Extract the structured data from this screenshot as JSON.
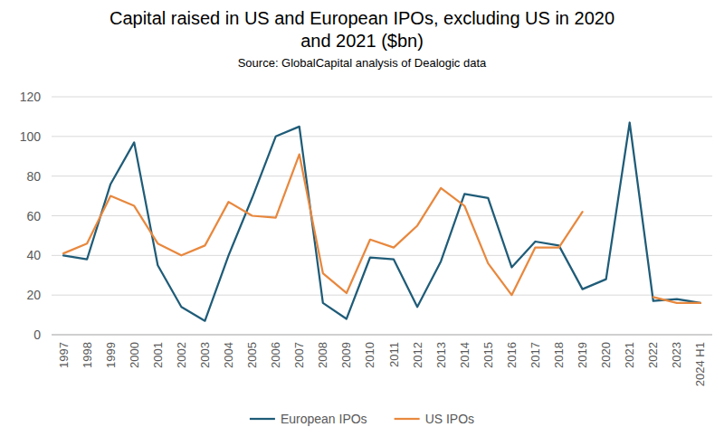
{
  "chart_data": {
    "type": "line",
    "title": "Capital raised in US and European IPOs, excluding US in 2020 and 2021 ($bn)",
    "subtitle": "Source: GlobalCapital analysis of Dealogic data",
    "categories": [
      "1997",
      "1998",
      "1999",
      "2000",
      "2001",
      "2002",
      "2003",
      "2004",
      "2005",
      "2006",
      "2007",
      "2008",
      "2009",
      "2010",
      "2011",
      "2012",
      "2013",
      "2014",
      "2015",
      "2016",
      "2017",
      "2018",
      "2019",
      "2020",
      "2021",
      "2022",
      "2023",
      "2024 H1"
    ],
    "series": [
      {
        "name": "European IPOs",
        "color": "#1f5c78",
        "values": [
          40,
          38,
          76,
          97,
          35,
          14,
          7,
          40,
          69,
          100,
          105,
          16,
          8,
          39,
          38,
          14,
          37,
          71,
          69,
          34,
          47,
          45,
          23,
          28,
          107,
          17,
          18,
          16
        ]
      },
      {
        "name": "US IPOs",
        "color": "#e8883e",
        "values": [
          41,
          46,
          70,
          65,
          46,
          40,
          45,
          67,
          60,
          59,
          91,
          31,
          21,
          48,
          44,
          55,
          74,
          65,
          36,
          20,
          44,
          44,
          62,
          null,
          null,
          19,
          16,
          16
        ]
      }
    ],
    "ylim": [
      0,
      120
    ],
    "yticks": [
      0,
      20,
      40,
      60,
      80,
      100,
      120
    ],
    "grid": true,
    "legend": "bottom"
  }
}
